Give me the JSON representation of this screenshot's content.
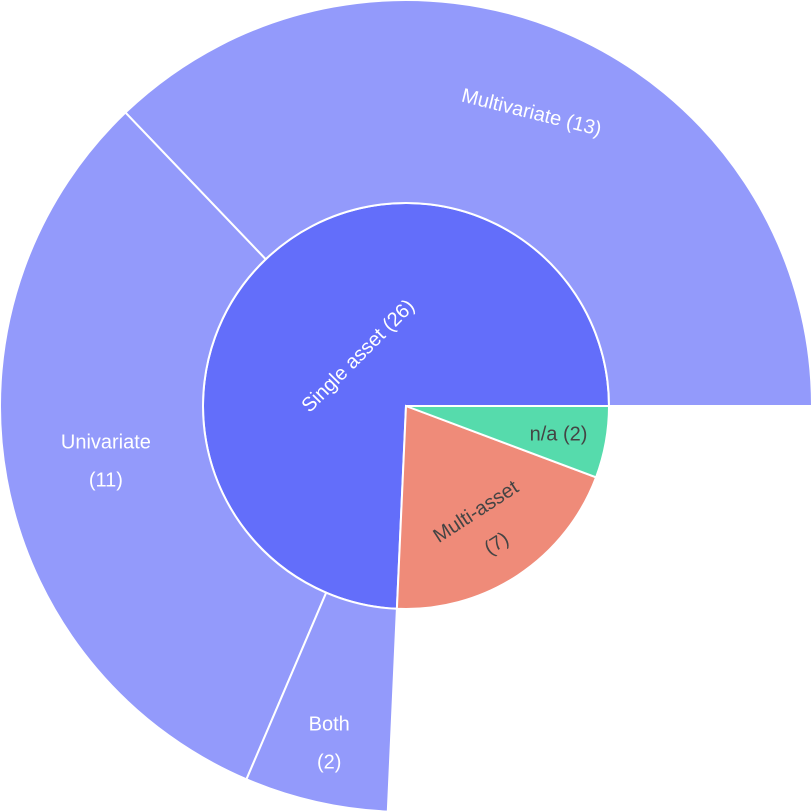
{
  "chart_data": {
    "type": "sunburst",
    "total": 35,
    "segments": [
      {
        "name": "Single asset",
        "value": 26,
        "label": "Single asset (26)",
        "color": "#636efa",
        "text_color": "#ffffff",
        "children": [
          {
            "name": "Multivariate",
            "value": 13,
            "label_lines": [
              "Multivariate (13)"
            ],
            "color": "#939afb",
            "text_color": "#ffffff"
          },
          {
            "name": "Univariate",
            "value": 11,
            "label_lines": [
              "Univariate",
              "(11)"
            ],
            "color": "#939afb",
            "text_color": "#ffffff"
          },
          {
            "name": "Both",
            "value": 2,
            "label_lines": [
              "Both",
              "(2)"
            ],
            "color": "#939afb",
            "text_color": "#ffffff"
          }
        ]
      },
      {
        "name": "Multi-asset",
        "value": 7,
        "label": "Multi-asset (7)",
        "label_lines": [
          "Multi-asset",
          "(7)"
        ],
        "color": "#ef8b79",
        "text_color": "#444444",
        "children": []
      },
      {
        "name": "n/a",
        "value": 2,
        "label": "n/a (2)",
        "label_lines": [
          "n/a (2)"
        ],
        "color": "#56dbac",
        "text_color": "#444444",
        "children": []
      }
    ]
  }
}
